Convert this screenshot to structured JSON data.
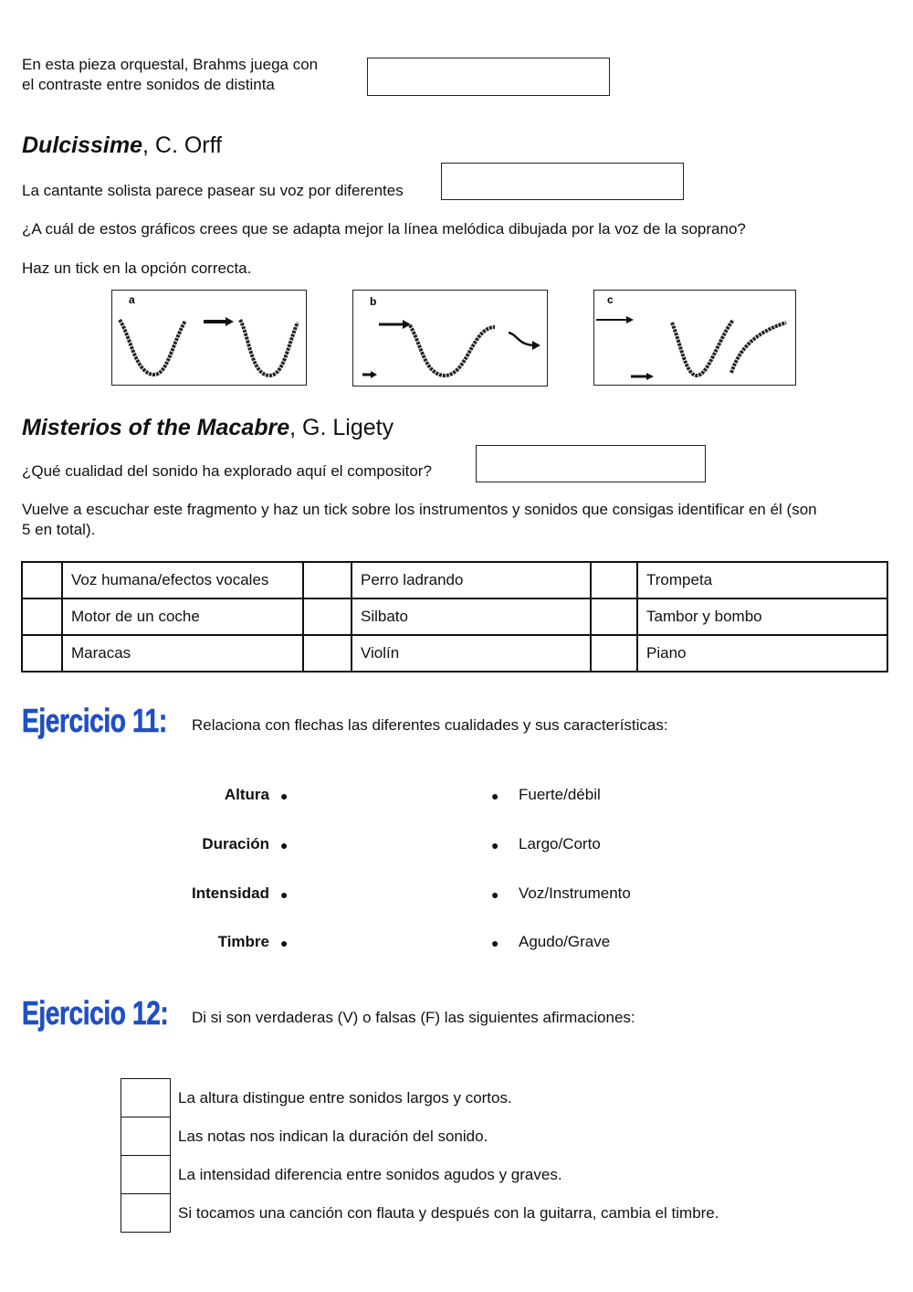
{
  "brahms": {
    "line1": "En esta pieza orquestal, Brahms juega con",
    "line2": "el contraste entre sonidos de distinta"
  },
  "dulcissime": {
    "title": "Dulcissime",
    "composer": ", C. Orff",
    "prompt": "La cantante solista parece pasear su voz por diferentes",
    "question": "¿A cuál de estos gráficos crees que se adapta mejor la línea melódica dibujada por la voz de la soprano?",
    "instruction": "Haz un tick en la opción correcta.",
    "graphs": [
      "a",
      "b",
      "c"
    ]
  },
  "misterios": {
    "title": "Misterios of the Macabre",
    "composer": ", G. Ligety",
    "question": "¿Qué cualidad del sonido ha explorado aquí el compositor?",
    "instruction_line1": "Vuelve a escuchar este fragmento y haz un tick sobre los instrumentos y sonidos que consigas identificar en él (son",
    "instruction_line2": "5 en total).",
    "rows": [
      [
        "Voz humana/efectos vocales",
        "Perro ladrando",
        "Trompeta"
      ],
      [
        "Motor de un coche",
        "Silbato",
        "Tambor y bombo"
      ],
      [
        "Maracas",
        "Violín",
        "Piano"
      ]
    ]
  },
  "ej11": {
    "title": "Ejercicio 11:",
    "instruction": "Relaciona con flechas las diferentes cualidades y sus características:",
    "left": [
      "Altura",
      "Duración",
      "Intensidad",
      "Timbre"
    ],
    "right": [
      "Fuerte/débil",
      "Largo/Corto",
      "Voz/Instrumento",
      "Agudo/Grave"
    ],
    "bullet": "●"
  },
  "ej12": {
    "title": "Ejercicio 12:",
    "instruction": "Di si son verdaderas (V) o falsas (F) las siguientes afirmaciones:",
    "statements": [
      "La altura distingue entre sonidos largos y cortos.",
      "Las notas nos indican la duración del sonido.",
      "La intensidad diferencia entre sonidos agudos y graves.",
      "Si tocamos una canción con flauta y después con la guitarra, cambia el timbre."
    ]
  },
  "colors": {
    "heading_blue": "#1f4fc4"
  }
}
